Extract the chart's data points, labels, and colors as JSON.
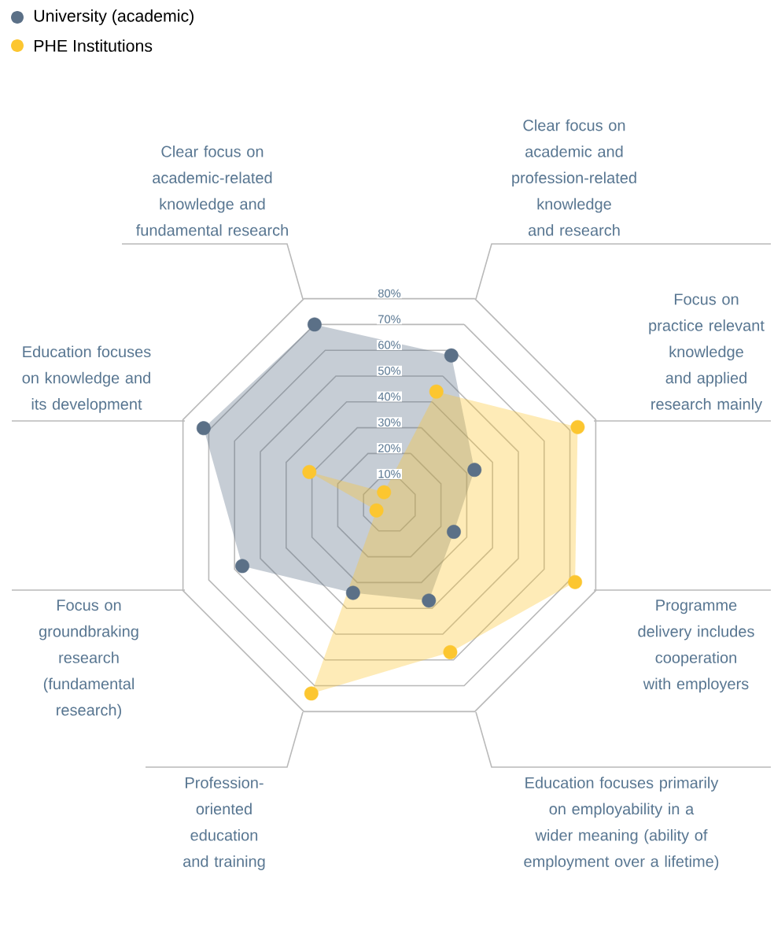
{
  "chart_data": {
    "type": "radar",
    "categories": [
      "Clear focus on academic and profession-related knowledge and research",
      "Focus on practice relevant knowledge and applied research mainly",
      "Programme delivery includes cooperation with employers",
      "Education focuses primarily on employability in a wider meaning (ability of employment over a lifetime)",
      "Profession-oriented education and training",
      "Focus on groundbraking research (fundamental research)",
      "Education focuses on knowledge and its development",
      "Clear focus on academic-related knowledge and fundamental research"
    ],
    "series": [
      {
        "name": "University (academic)",
        "color": "#5b7087",
        "values": [
          58,
          33,
          25,
          37,
          34,
          57,
          72,
          70
        ]
      },
      {
        "name": "PHE Institutions",
        "color": "#fcc630",
        "values": [
          44,
          73,
          72,
          57,
          73,
          5,
          31,
          5
        ]
      }
    ],
    "ylim": [
      0,
      80
    ],
    "yticks": [
      {
        "value": 10,
        "label": "10%"
      },
      {
        "value": 20,
        "label": "20%"
      },
      {
        "value": 30,
        "label": "30%"
      },
      {
        "value": 40,
        "label": "40%"
      },
      {
        "value": 50,
        "label": "50%"
      },
      {
        "value": 60,
        "label": "60%"
      },
      {
        "value": 70,
        "label": "70%"
      },
      {
        "value": 80,
        "label": "80%"
      }
    ],
    "grid": true,
    "legend": "top left",
    "marker": "circle"
  }
}
